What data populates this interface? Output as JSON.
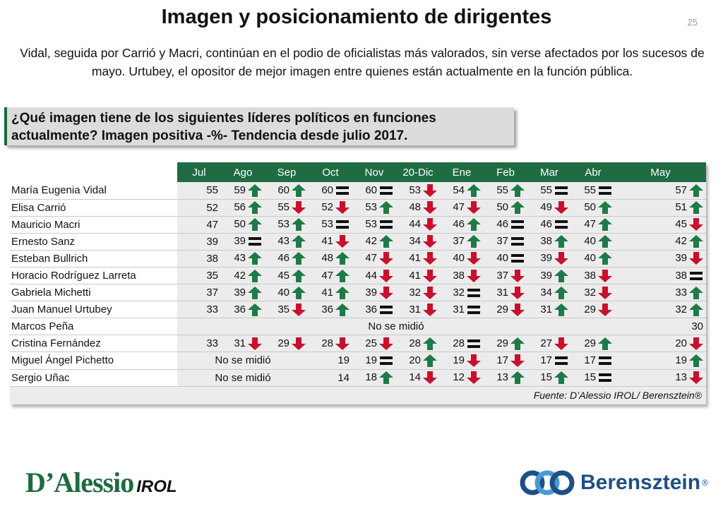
{
  "header": {
    "title": "Imagen y posicionamiento de dirigentes",
    "page_number": "25",
    "subtitle": "Vidal, seguida por Carrió y Macri, continúan en el podio de oficialistas más valorados, sin verse afectados por los sucesos de mayo. Urtubey, el opositor de mejor imagen entre quienes están actualmente en la función pública."
  },
  "question": {
    "line1": "¿Qué imagen tiene de los siguientes líderes políticos en funciones",
    "line2": "actualmente? Imagen positiva -%- Tendencia desde julio 2017."
  },
  "colors": {
    "up": "#1e7a47",
    "down": "#c8102e",
    "equal": "#111111",
    "header": "#1f6b42"
  },
  "table": {
    "months": [
      "Jul",
      "Ago",
      "Sep",
      "Oct",
      "Nov",
      "20-Dic",
      "Ene",
      "Feb",
      "Mar",
      "Abr",
      "May"
    ],
    "not_measured": "No se midió",
    "rows": [
      {
        "name": "María Eugenia Vidal",
        "values": [
          "55",
          "59",
          "60",
          "60",
          "60",
          "53",
          "54",
          "55",
          "55",
          "55",
          "57"
        ],
        "trend": [
          "",
          "up",
          "up",
          "eq",
          "eq",
          "down",
          "up",
          "up",
          "eq",
          "eq",
          "up"
        ]
      },
      {
        "name": "Elisa Carrió",
        "values": [
          "52",
          "56",
          "55",
          "52",
          "53",
          "48",
          "47",
          "50",
          "49",
          "50",
          "51"
        ],
        "trend": [
          "",
          "up",
          "down",
          "down",
          "up",
          "down",
          "down",
          "up",
          "down",
          "up",
          "up"
        ]
      },
      {
        "name": "Mauricio Macri",
        "values": [
          "47",
          "50",
          "53",
          "53",
          "53",
          "44",
          "46",
          "46",
          "46",
          "47",
          "45"
        ],
        "trend": [
          "",
          "up",
          "up",
          "eq",
          "eq",
          "down",
          "up",
          "eq",
          "eq",
          "up",
          "down"
        ]
      },
      {
        "name": "Ernesto Sanz",
        "values": [
          "39",
          "39",
          "43",
          "41",
          "42",
          "34",
          "37",
          "37",
          "38",
          "40",
          "42"
        ],
        "trend": [
          "",
          "eq",
          "up",
          "down",
          "up",
          "down",
          "up",
          "eq",
          "up",
          "up",
          "up"
        ]
      },
      {
        "name": "Esteban Bullrich",
        "values": [
          "38",
          "43",
          "46",
          "48",
          "47",
          "41",
          "40",
          "40",
          "39",
          "40",
          "39"
        ],
        "trend": [
          "",
          "up",
          "up",
          "up",
          "down",
          "down",
          "down",
          "eq",
          "down",
          "up",
          "down"
        ]
      },
      {
        "name": "Horacio Rodríguez Larreta",
        "values": [
          "35",
          "42",
          "45",
          "47",
          "44",
          "41",
          "38",
          "37",
          "39",
          "38",
          "38"
        ],
        "trend": [
          "",
          "up",
          "up",
          "up",
          "down",
          "down",
          "down",
          "down",
          "up",
          "down",
          "eq"
        ]
      },
      {
        "name": "Gabriela Michetti",
        "values": [
          "37",
          "39",
          "40",
          "41",
          "39",
          "32",
          "32",
          "31",
          "34",
          "32",
          "33"
        ],
        "trend": [
          "",
          "up",
          "up",
          "up",
          "down",
          "down",
          "eq",
          "down",
          "up",
          "down",
          "up"
        ]
      },
      {
        "name": "Juan Manuel Urtubey",
        "values": [
          "33",
          "36",
          "35",
          "36",
          "36",
          "31",
          "31",
          "29",
          "31",
          "29",
          "32"
        ],
        "trend": [
          "",
          "up",
          "down",
          "up",
          "eq",
          "down",
          "eq",
          "down",
          "up",
          "down",
          "up"
        ]
      },
      {
        "name": "Marcos Peña",
        "values": [
          "",
          "",
          "",
          "",
          "",
          "",
          "",
          "",
          "",
          "",
          "30"
        ],
        "trend": [
          "",
          "",
          "",
          "",
          "",
          "",
          "",
          "",
          "",
          "",
          ""
        ],
        "span_nm": [
          0,
          10
        ]
      },
      {
        "name": "Cristina Fernández",
        "values": [
          "33",
          "31",
          "29",
          "28",
          "25",
          "28",
          "28",
          "29",
          "27",
          "29",
          "20"
        ],
        "trend": [
          "",
          "down",
          "down",
          "down",
          "down",
          "up",
          "eq",
          "up",
          "down",
          "up",
          "down"
        ]
      },
      {
        "name": "Miguel Ángel Pichetto",
        "values": [
          "",
          "",
          "",
          "19",
          "19",
          "20",
          "19",
          "17",
          "17",
          "17",
          "19"
        ],
        "trend": [
          "",
          "",
          "",
          "",
          "eq",
          "up",
          "down",
          "down",
          "eq",
          "eq",
          "up"
        ],
        "span_nm": [
          0,
          3
        ]
      },
      {
        "name": "Sergio Uñac",
        "values": [
          "",
          "",
          "",
          "14",
          "18",
          "14",
          "12",
          "13",
          "15",
          "15",
          "13"
        ],
        "trend": [
          "",
          "",
          "",
          "",
          "up",
          "down",
          "down",
          "up",
          "up",
          "eq",
          "down"
        ],
        "span_nm": [
          0,
          3
        ]
      }
    ],
    "source": "Fuente: D’Alessio IROL/ Berensztein®"
  },
  "logos": {
    "left_main": "D’Alessio",
    "left_sub": "IROL",
    "right": "Berensztein",
    "right_mark": "®"
  }
}
